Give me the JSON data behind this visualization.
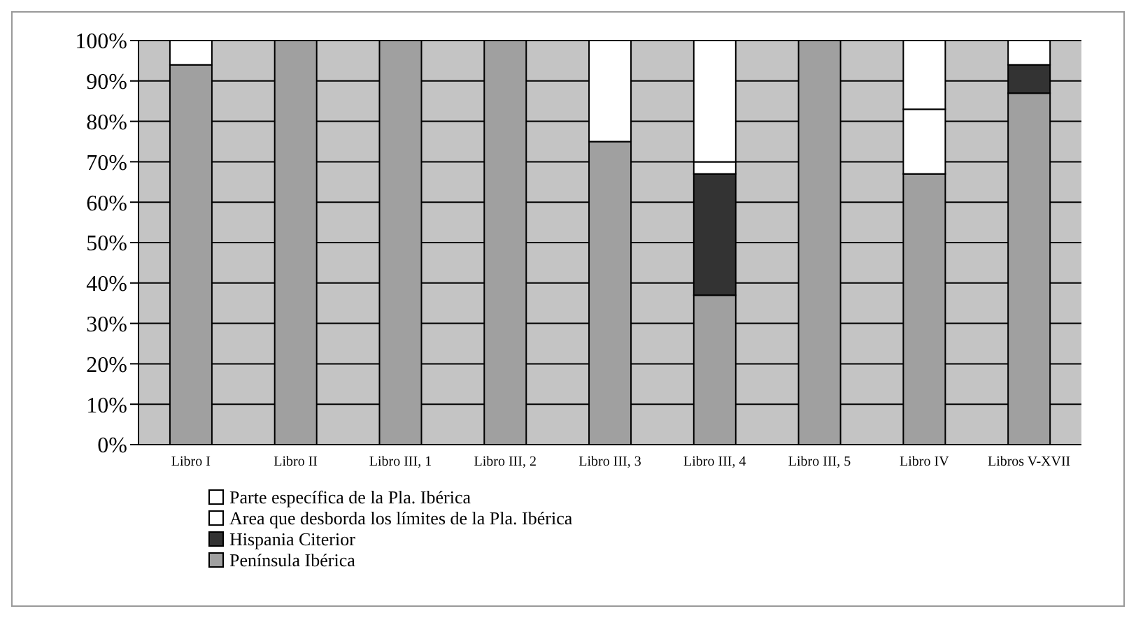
{
  "chart_data": {
    "type": "bar",
    "stacked": true,
    "categories": [
      "Libro I",
      "Libro II",
      "Libro III, 1",
      "Libro III, 2",
      "Libro III, 3",
      "Libro III, 4",
      "Libro III, 5",
      "Libro IV",
      "Libros V-XVII"
    ],
    "series": [
      {
        "name": "Península Ibérica",
        "color": "#a0a0a0",
        "values": [
          94,
          100,
          100,
          100,
          75,
          37,
          100,
          67,
          87
        ]
      },
      {
        "name": "Hispania Citerior",
        "color": "#333333",
        "values": [
          0,
          0,
          0,
          0,
          0,
          30,
          0,
          0,
          7
        ]
      },
      {
        "name": "Area que desborda los límites de la Pla. Ibérica",
        "color": "#ffffff",
        "values": [
          0,
          0,
          0,
          0,
          0,
          3,
          0,
          16,
          0
        ]
      },
      {
        "name": "Parte específica de la Pla. Ibérica",
        "color": "#ffffff",
        "values": [
          6,
          0,
          0,
          0,
          25,
          30,
          0,
          17,
          6
        ]
      }
    ],
    "ylim": [
      0,
      100
    ],
    "yticks": [
      {
        "value": 0,
        "label": "0%"
      },
      {
        "value": 10,
        "label": "10%"
      },
      {
        "value": 20,
        "label": "20%"
      },
      {
        "value": 30,
        "label": "30%"
      },
      {
        "value": 40,
        "label": "40%"
      },
      {
        "value": 50,
        "label": "50%"
      },
      {
        "value": 60,
        "label": "60%"
      },
      {
        "value": 70,
        "label": "70%"
      },
      {
        "value": 80,
        "label": "80%"
      },
      {
        "value": 90,
        "label": "90%"
      },
      {
        "value": 100,
        "label": "100%"
      }
    ],
    "grid": "y",
    "legend": "bottom left"
  }
}
